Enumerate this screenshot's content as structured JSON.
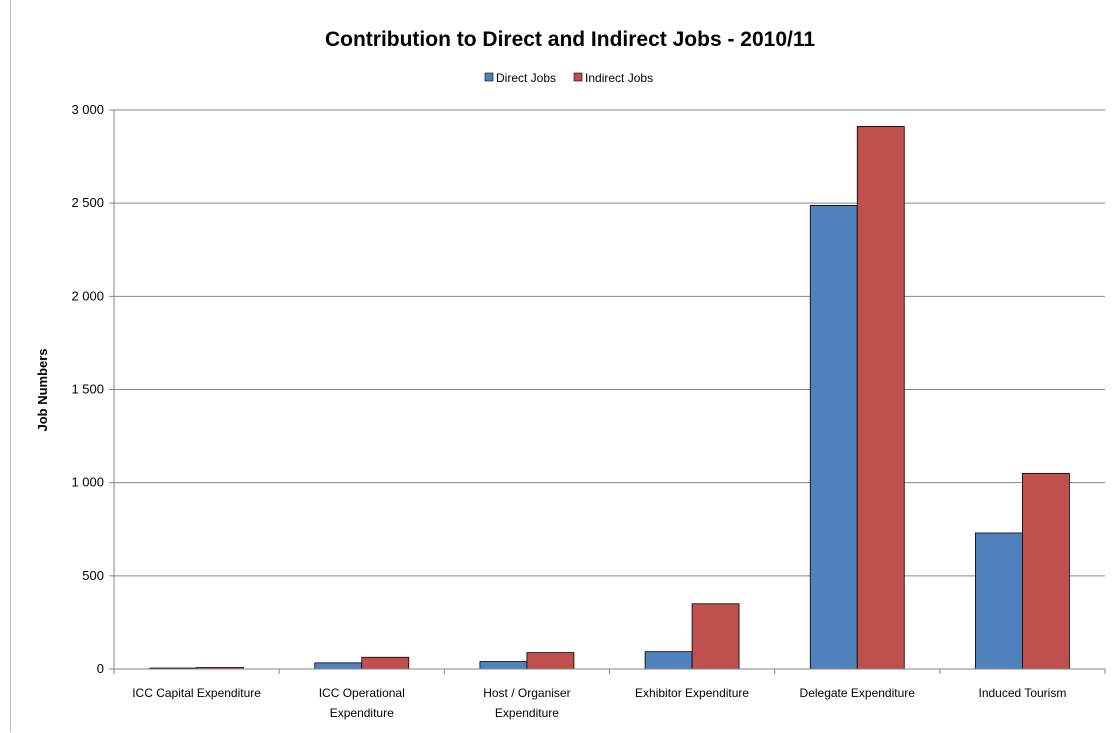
{
  "chart_data": {
    "type": "bar",
    "title": "Contribution to Direct and Indirect Jobs - 2010/11",
    "xlabel": "",
    "ylabel": "Job Numbers",
    "ylim": [
      0,
      3000
    ],
    "yticks": [
      0,
      500,
      1000,
      1500,
      2000,
      2500,
      3000
    ],
    "ytick_labels": [
      "0",
      "500",
      "1 000",
      "1 500",
      "2 000",
      "2 500",
      "3 000"
    ],
    "grid": true,
    "legend_position": "top-center",
    "categories": [
      [
        "ICC Capital Expenditure"
      ],
      [
        "ICC Operational",
        "Expenditure"
      ],
      [
        "Host / Organiser",
        "Expenditure"
      ],
      [
        "Exhibitor Expenditure"
      ],
      [
        "Delegate Expenditure"
      ],
      [
        "Induced Tourism"
      ]
    ],
    "series": [
      {
        "name": "Direct Jobs",
        "color": "#4f81bd",
        "values": [
          5,
          33,
          40,
          93,
          2488,
          730
        ]
      },
      {
        "name": "Indirect Jobs",
        "color": "#c0504d",
        "values": [
          8,
          63,
          88,
          350,
          2912,
          1050
        ]
      }
    ]
  }
}
